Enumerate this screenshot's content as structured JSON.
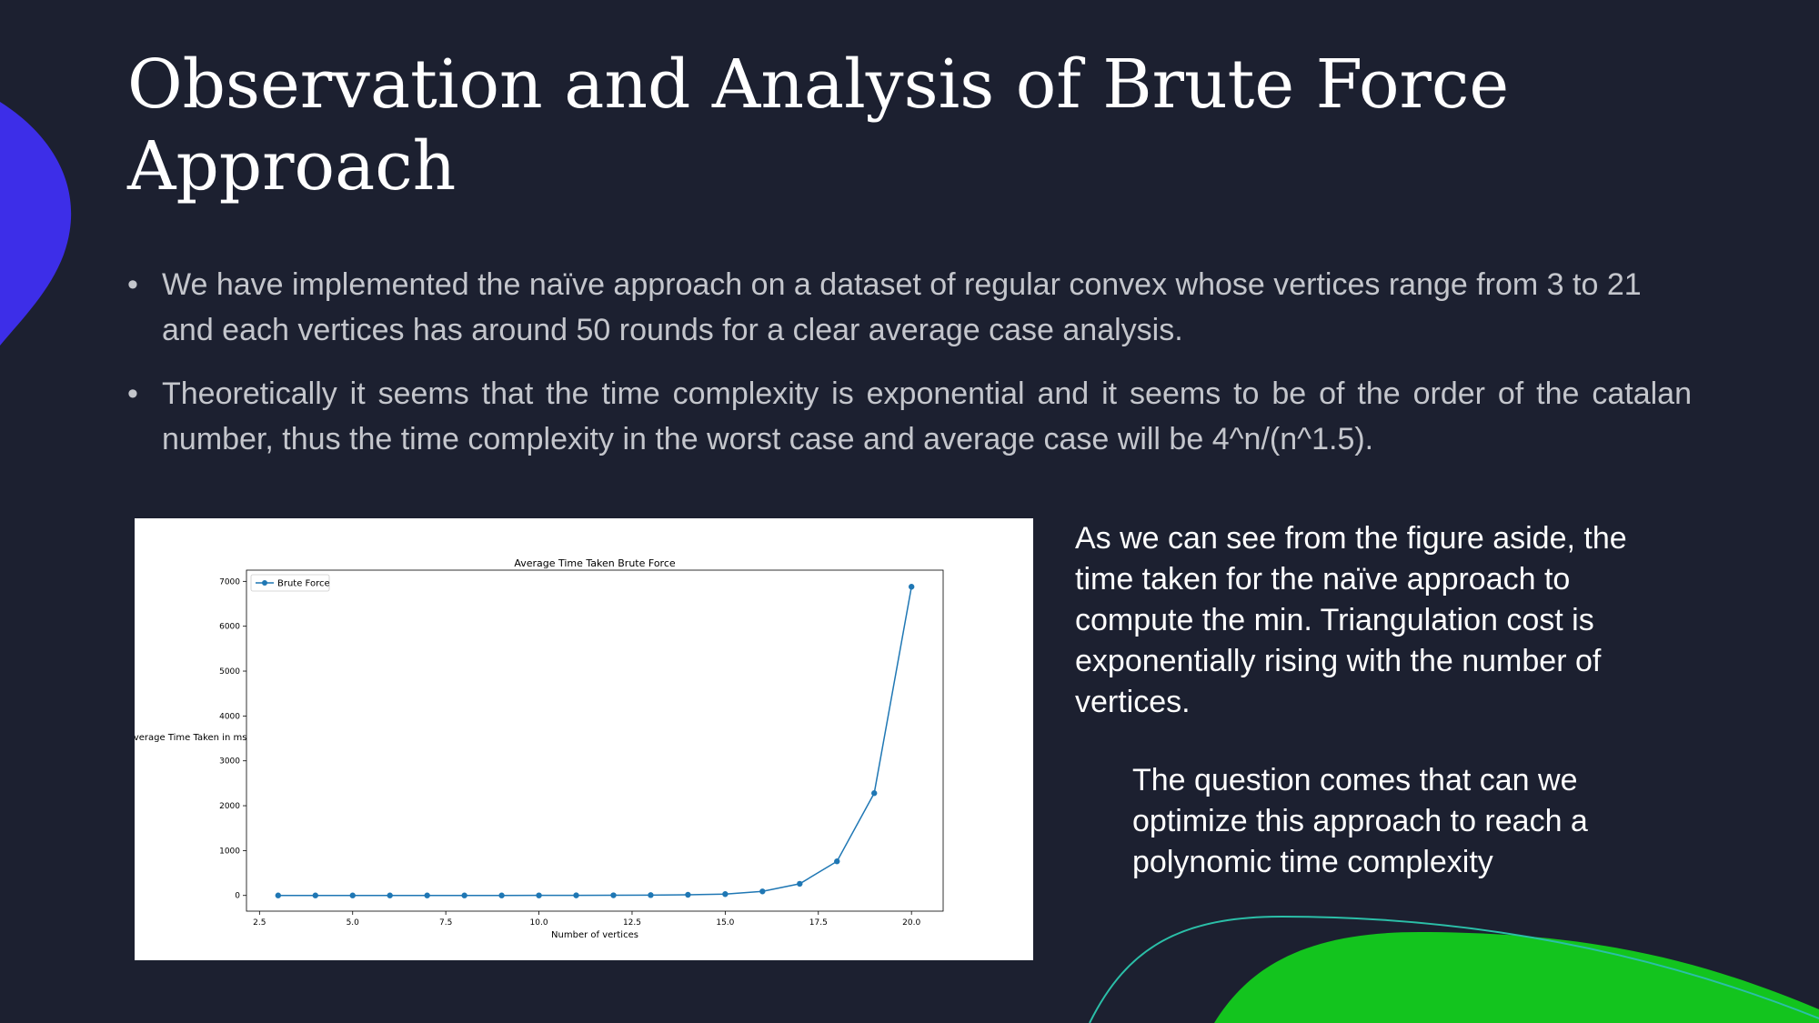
{
  "slide": {
    "title": "Observation and Analysis of Brute Force Approach",
    "bullets": [
      "We have implemented the naïve approach on a dataset of regular convex whose vertices range from 3 to 21 and each vertices has around 50 rounds for a clear average case analysis.",
      "Theoretically it seems that the time complexity is exponential and it seems to be of the order of the catalan number, thus the time complexity in the worst case and average case will be 4^n/(n^1.5)."
    ],
    "side_text_1": "As we can see from the figure aside, the time taken for the naïve approach to compute the min. Triangulation cost is exponentially rising with the number of vertices.",
    "side_text_2": "The question comes that can we optimize this approach to reach a polynomic time complexity",
    "colors": {
      "background": "#1c2030",
      "accent_blue": "#3d2ee8",
      "accent_green": "#13c41e",
      "accent_teal": "#2bbfa8",
      "series": "#1f77b4"
    }
  },
  "chart_data": {
    "type": "line",
    "title": "Average Time Taken Brute Force",
    "xlabel": "Number of vertices",
    "ylabel": "Average Time Taken in ms",
    "xlim": [
      2.15,
      20.85
    ],
    "ylim": [
      -350,
      7250
    ],
    "xticks": [
      2.5,
      5.0,
      7.5,
      10.0,
      12.5,
      15.0,
      17.5,
      20.0
    ],
    "xtick_labels": [
      "2.5",
      "5.0",
      "7.5",
      "10.0",
      "12.5",
      "15.0",
      "17.5",
      "20.0"
    ],
    "yticks": [
      0,
      1000,
      2000,
      3000,
      4000,
      5000,
      6000,
      7000
    ],
    "ytick_labels": [
      "0",
      "1000",
      "2000",
      "3000",
      "4000",
      "5000",
      "6000",
      "7000"
    ],
    "legend": "top-left",
    "grid": false,
    "series": [
      {
        "name": "Brute Force",
        "color": "#1f77b4",
        "x": [
          3,
          4,
          5,
          6,
          7,
          8,
          9,
          10,
          11,
          12,
          13,
          14,
          15,
          16,
          17,
          18,
          19,
          20
        ],
        "y": [
          0,
          0,
          0,
          0,
          0,
          0,
          0,
          1,
          2,
          4,
          8,
          15,
          30,
          90,
          260,
          760,
          2280,
          6880
        ]
      }
    ]
  }
}
